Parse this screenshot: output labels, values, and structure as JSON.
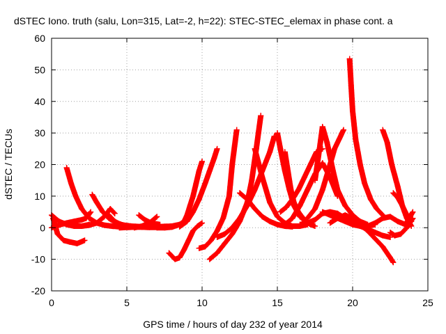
{
  "chart_data": {
    "type": "scatter",
    "title": "dSTEC Iono. truth (salu, Lon=315, Lat=-2, h=22): STEC-STEC_elemax in phase cont. a",
    "xlabel": "GPS time / hours of day 232 of year 2014",
    "ylabel": "dSTEC  / TECUs",
    "xlim": [
      0,
      25
    ],
    "ylim": [
      -20,
      60
    ],
    "xticks": [
      0,
      5,
      10,
      15,
      20,
      25
    ],
    "yticks": [
      -20,
      -10,
      0,
      10,
      20,
      30,
      40,
      50,
      60
    ],
    "grid": true,
    "marker": "plus",
    "colors": {
      "series": "#ff0000"
    },
    "series": [
      {
        "x": [
          0.0,
          0.3,
          0.6,
          1.0,
          1.5,
          2.0,
          2.3,
          2.6
        ],
        "y": [
          0.0,
          0.5,
          1.0,
          1.5,
          2.0,
          2.5,
          3.0,
          5.0
        ]
      },
      {
        "x": [
          0.1,
          0.4,
          0.8,
          1.2,
          1.7,
          2.2
        ],
        "y": [
          3.0,
          -2.0,
          -4.0,
          -4.5,
          -5.0,
          -4.0
        ]
      },
      {
        "x": [
          0.0,
          0.5,
          1.0,
          1.5,
          2.0,
          2.5
        ],
        "y": [
          4.0,
          2.0,
          1.0,
          0.5,
          0.5,
          1.0
        ]
      },
      {
        "x": [
          1.0,
          1.3,
          1.6,
          2.0,
          2.5,
          3.0,
          3.5,
          4.0,
          4.5,
          5.0,
          5.5
        ],
        "y": [
          19.0,
          14.0,
          10.0,
          6.0,
          3.0,
          1.5,
          0.8,
          0.5,
          0.3,
          0.2,
          0.2
        ]
      },
      {
        "x": [
          2.7,
          3.0,
          3.4,
          3.8,
          4.3,
          4.8,
          5.3,
          6.0
        ],
        "y": [
          10.5,
          8.0,
          5.0,
          3.0,
          1.5,
          0.8,
          0.5,
          0.3
        ]
      },
      {
        "x": [
          1.5,
          2.0,
          2.5,
          3.0,
          3.5,
          3.9,
          4.2
        ],
        "y": [
          0.5,
          0.5,
          0.8,
          1.5,
          3.5,
          6.0,
          4.5
        ]
      },
      {
        "x": [
          3.8,
          4.2,
          4.6,
          5.0,
          5.5,
          6.0,
          6.5,
          7.0,
          7.5,
          8.0
        ],
        "y": [
          4.0,
          2.0,
          1.0,
          0.5,
          0.3,
          0.2,
          0.1,
          0.1,
          0.2,
          0.5
        ]
      },
      {
        "x": [
          4.5,
          5.0,
          5.5,
          6.0,
          6.5,
          7.0,
          7.5,
          8.0,
          8.5
        ],
        "y": [
          0.0,
          0.1,
          0.2,
          0.2,
          0.3,
          0.3,
          0.4,
          0.5,
          1.0
        ]
      },
      {
        "x": [
          5.5,
          6.0,
          6.5,
          7.0
        ],
        "y": [
          0.0,
          0.5,
          1.5,
          3.5
        ]
      },
      {
        "x": [
          5.8,
          6.2,
          6.6,
          7.2
        ],
        "y": [
          4.0,
          2.5,
          1.5,
          1.0
        ]
      },
      {
        "x": [
          7.8,
          8.2,
          8.5,
          8.8,
          9.1,
          9.4,
          9.7,
          10.0
        ],
        "y": [
          -8.0,
          -10.0,
          -9.5,
          -7.0,
          -4.0,
          -1.0,
          0.5,
          1.5
        ]
      },
      {
        "x": [
          7.0,
          7.5,
          8.0,
          8.5,
          8.8,
          9.0,
          9.2,
          9.4,
          9.6,
          9.8,
          10.0
        ],
        "y": [
          0.0,
          0.0,
          0.2,
          1.0,
          2.0,
          4.0,
          7.0,
          10.0,
          14.0,
          18.0,
          21.0
        ]
      },
      {
        "x": [
          8.5,
          9.0,
          9.4,
          9.8,
          10.2,
          10.5,
          10.8,
          11.0
        ],
        "y": [
          0.3,
          2.0,
          5.0,
          9.0,
          14.0,
          18.0,
          22.0,
          25.0
        ]
      },
      {
        "x": [
          9.8,
          10.2,
          10.6,
          11.0,
          11.4,
          11.8,
          12.0,
          12.3
        ],
        "y": [
          -6.5,
          -6.0,
          -4.0,
          -1.0,
          3.0,
          10.0,
          20.0,
          31.0
        ]
      },
      {
        "x": [
          10.5,
          11.0,
          11.5,
          12.0,
          12.5,
          13.0,
          13.3,
          13.6,
          13.9
        ],
        "y": [
          -10.0,
          -8.0,
          -5.0,
          -2.0,
          2.0,
          8.0,
          15.0,
          25.0,
          35.5
        ]
      },
      {
        "x": [
          11.0,
          11.5,
          12.0,
          12.5,
          13.0,
          13.5,
          14.0,
          14.5,
          14.8
        ],
        "y": [
          -3.0,
          -2.0,
          0.0,
          3.0,
          7.0,
          12.0,
          18.0,
          24.0,
          29.0
        ]
      },
      {
        "x": [
          12.5,
          13.0,
          13.5,
          14.0,
          14.5,
          15.0,
          15.5,
          16.0
        ],
        "y": [
          11.0,
          9.0,
          6.0,
          3.5,
          2.0,
          1.0,
          0.5,
          0.3
        ]
      },
      {
        "x": [
          13.5,
          14.0,
          14.5,
          15.0,
          15.5,
          16.0,
          16.5,
          17.0
        ],
        "y": [
          25.0,
          16.0,
          8.0,
          3.5,
          1.5,
          0.5,
          0.5,
          1.0
        ]
      },
      {
        "x": [
          15.0,
          15.2,
          15.5,
          15.8,
          16.1,
          16.5,
          17.0,
          17.5
        ],
        "y": [
          30.0,
          25.0,
          18.0,
          12.0,
          7.0,
          3.5,
          1.5,
          0.5
        ]
      },
      {
        "x": [
          15.5,
          15.7,
          15.9,
          16.1,
          16.4,
          16.8,
          17.2
        ],
        "y": [
          24.0,
          18.0,
          12.0,
          8.0,
          5.0,
          2.5,
          1.0
        ]
      },
      {
        "x": [
          15.2,
          15.6,
          16.0,
          16.4,
          16.8,
          17.2,
          17.6,
          18.0
        ],
        "y": [
          5.0,
          6.5,
          9.0,
          12.0,
          16.0,
          20.0,
          24.0,
          25.0
        ]
      },
      {
        "x": [
          15.5,
          16.0,
          16.5,
          17.0,
          17.5,
          18.0,
          18.5,
          19.0
        ],
        "y": [
          1.0,
          3.0,
          7.0,
          12.0,
          17.0,
          20.5,
          16.0,
          10.0
        ]
      },
      {
        "x": [
          17.5,
          17.8,
          18.0,
          18.3,
          18.7,
          19.0,
          19.5,
          20.0,
          20.5,
          21.0
        ],
        "y": [
          15.0,
          25.0,
          32.0,
          27.0,
          18.0,
          12.0,
          7.0,
          4.0,
          2.0,
          1.0
        ]
      },
      {
        "x": [
          17.0,
          17.5,
          18.0,
          18.5,
          18.8,
          19.1,
          19.4
        ],
        "y": [
          3.0,
          6.0,
          12.0,
          20.0,
          25.0,
          28.0,
          31.0
        ]
      },
      {
        "x": [
          18.0,
          18.5,
          19.0,
          19.5,
          20.0,
          20.5,
          21.0,
          21.5
        ],
        "y": [
          5.0,
          4.0,
          3.0,
          2.0,
          1.0,
          0.5,
          0.5,
          1.0
        ]
      },
      {
        "x": [
          16.5,
          17.0,
          17.5,
          18.0,
          18.5,
          19.0,
          19.5,
          20.0,
          20.5,
          21.0,
          21.5,
          22.0,
          22.5
        ],
        "y": [
          1.0,
          1.5,
          2.5,
          4.5,
          5.0,
          4.5,
          3.0,
          1.5,
          0.5,
          -0.5,
          -1.5,
          -2.5,
          -3.0
        ]
      },
      {
        "x": [
          19.8,
          19.9,
          20.0,
          20.2,
          20.5,
          20.8,
          21.2,
          21.6,
          22.0
        ],
        "y": [
          53.5,
          45.0,
          37.0,
          28.0,
          20.0,
          14.0,
          9.0,
          6.0,
          4.0
        ]
      },
      {
        "x": [
          18.5,
          19.0,
          19.5,
          20.0,
          20.5,
          21.0,
          21.5,
          22.0,
          22.5,
          22.7
        ],
        "y": [
          1.5,
          3.0,
          4.0,
          3.0,
          1.0,
          -1.0,
          -3.5,
          -6.0,
          -9.5,
          -11.0
        ]
      },
      {
        "x": [
          22.0,
          22.3,
          22.6,
          23.0,
          23.3,
          23.6,
          23.9
        ],
        "y": [
          31.0,
          27.0,
          20.0,
          13.0,
          7.0,
          3.0,
          0.5
        ]
      },
      {
        "x": [
          22.5,
          22.8,
          23.2,
          23.6,
          24.0
        ],
        "y": [
          -1.5,
          -2.5,
          -2.0,
          0.0,
          3.0
        ]
      },
      {
        "x": [
          22.7,
          23.0,
          23.3,
          23.6,
          23.9
        ],
        "y": [
          11.0,
          9.5,
          7.0,
          4.0,
          2.0
        ]
      },
      {
        "x": [
          21.0,
          21.5,
          22.0,
          22.5,
          23.0,
          23.5,
          24.0
        ],
        "y": [
          0.5,
          1.5,
          3.0,
          3.5,
          2.0,
          1.0,
          5.0
        ]
      }
    ]
  }
}
